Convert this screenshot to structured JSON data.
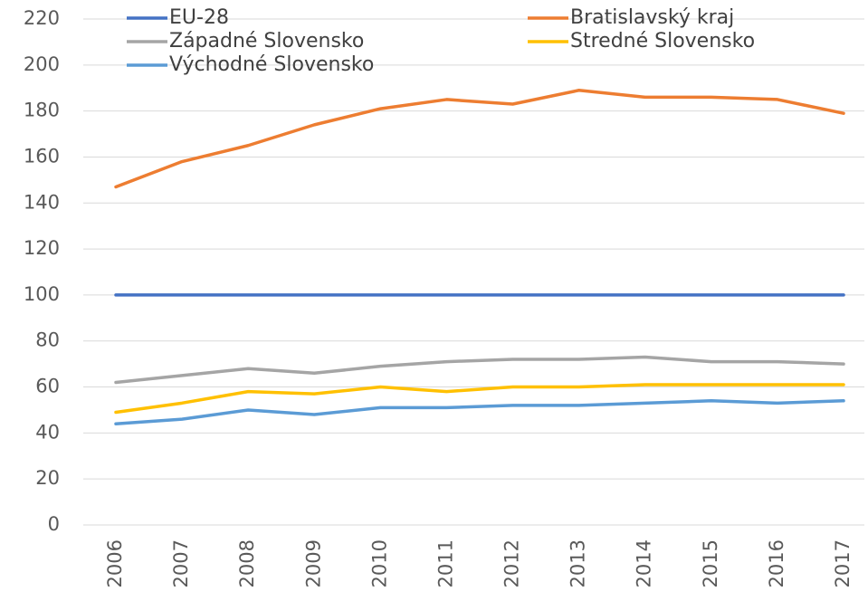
{
  "chart_data": {
    "type": "line",
    "categories": [
      "2006",
      "2007",
      "2008",
      "2009",
      "2010",
      "2011",
      "2012",
      "2013",
      "2014",
      "2015",
      "2016",
      "2017"
    ],
    "series": [
      {
        "name": "EU-28",
        "color": "#4472c4",
        "values": [
          100,
          100,
          100,
          100,
          100,
          100,
          100,
          100,
          100,
          100,
          100,
          100
        ]
      },
      {
        "name": "Bratislavský kraj",
        "color": "#ed7d31",
        "values": [
          147,
          158,
          165,
          174,
          181,
          185,
          183,
          189,
          186,
          186,
          185,
          179
        ]
      },
      {
        "name": "Západné Slovensko",
        "color": "#a5a5a5",
        "values": [
          62,
          65,
          68,
          66,
          69,
          71,
          72,
          72,
          73,
          71,
          71,
          70
        ]
      },
      {
        "name": "Stredné Slovensko",
        "color": "#ffc000",
        "values": [
          49,
          53,
          58,
          57,
          60,
          58,
          60,
          60,
          61,
          61,
          61,
          61
        ]
      },
      {
        "name": "Východné Slovensko",
        "color": "#5b9bd5",
        "values": [
          44,
          46,
          50,
          48,
          51,
          51,
          52,
          52,
          53,
          54,
          53,
          54
        ]
      }
    ],
    "ylim": [
      0,
      220
    ],
    "yticks": [
      0,
      20,
      40,
      60,
      80,
      100,
      120,
      140,
      160,
      180,
      200,
      220
    ],
    "grid": true
  }
}
